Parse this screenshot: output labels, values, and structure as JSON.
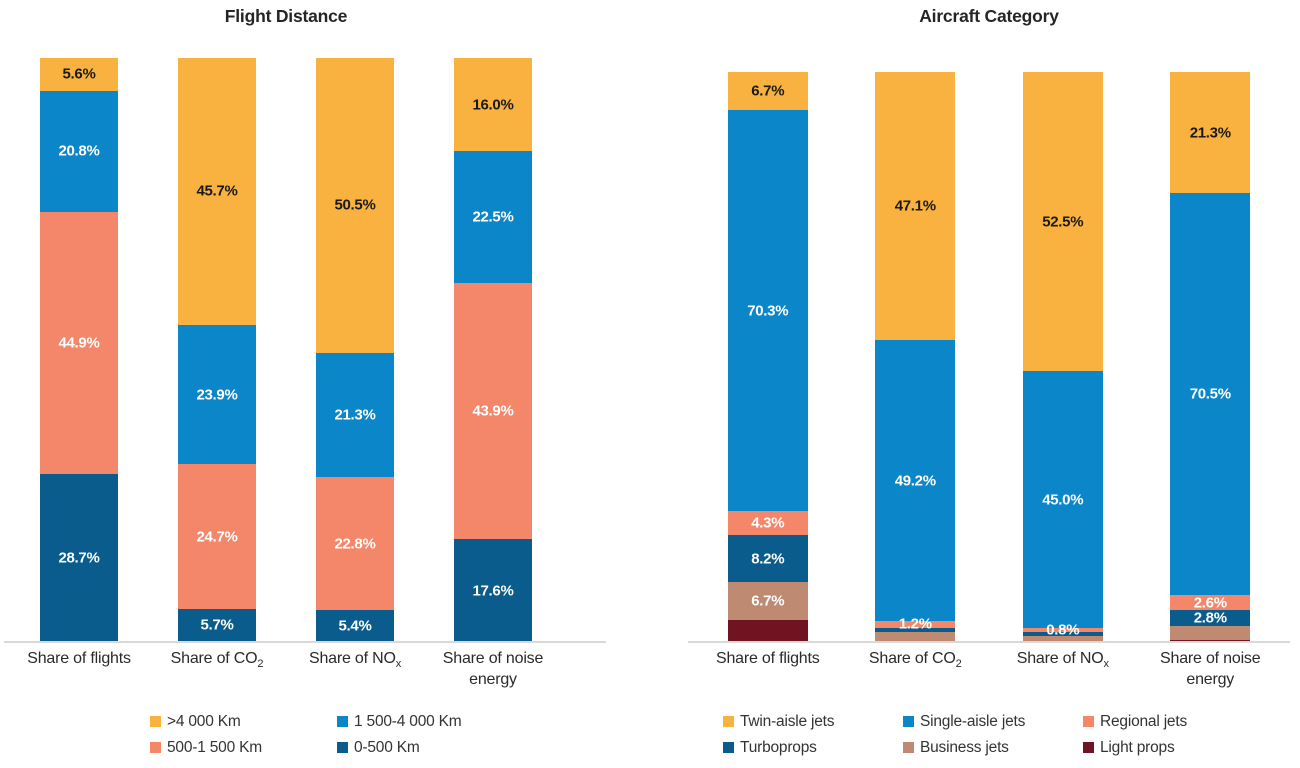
{
  "page": {
    "background_color": "#ffffff",
    "text_color": "#262626",
    "axis_line_color": "#d9d9d9"
  },
  "chart_data": [
    {
      "type": "bar",
      "stacked": true,
      "title": "Flight Distance",
      "unit": "%",
      "ylim": [
        0,
        100
      ],
      "grid": false,
      "legend_position": "bottom",
      "legend_columns": 2,
      "categories": [
        {
          "text": "Share of flights",
          "sub": ""
        },
        {
          "text": "Share of CO",
          "sub": "2"
        },
        {
          "text": "Share of NO",
          "sub": "x"
        },
        {
          "text": "Share of noise energy",
          "sub": ""
        }
      ],
      "series": [
        {
          "name": ">4 000 Km",
          "color": "#F9B23F",
          "label_style": "dark",
          "values": [
            5.6,
            45.7,
            50.5,
            16.0
          ],
          "show_labels": [
            true,
            true,
            true,
            true
          ]
        },
        {
          "name": "1 500-4 000 Km",
          "color": "#0B86C8",
          "label_style": "light",
          "values": [
            20.8,
            23.9,
            21.3,
            22.5
          ],
          "show_labels": [
            true,
            true,
            true,
            true
          ]
        },
        {
          "name": "500-1 500 Km",
          "color": "#F4876A",
          "label_style": "light",
          "values": [
            44.9,
            24.7,
            22.8,
            43.9
          ],
          "show_labels": [
            true,
            true,
            true,
            true
          ]
        },
        {
          "name": "0-500 Km",
          "color": "#0A5C8D",
          "label_style": "light",
          "values": [
            28.7,
            5.7,
            5.4,
            17.6
          ],
          "show_labels": [
            true,
            true,
            true,
            true
          ]
        }
      ]
    },
    {
      "type": "bar",
      "stacked": true,
      "title": "Aircraft Category",
      "unit": "%",
      "ylim": [
        0,
        100
      ],
      "grid": false,
      "legend_position": "bottom",
      "legend_columns": 3,
      "categories": [
        {
          "text": "Share of flights",
          "sub": ""
        },
        {
          "text": "Share of CO",
          "sub": "2"
        },
        {
          "text": "Share of NO",
          "sub": "x"
        },
        {
          "text": "Share of noise energy",
          "sub": ""
        }
      ],
      "series": [
        {
          "name": "Twin-aisle jets",
          "color": "#F9B23F",
          "label_style": "dark",
          "values": [
            6.7,
            47.1,
            52.5,
            21.3
          ],
          "show_labels": [
            true,
            true,
            true,
            true
          ]
        },
        {
          "name": "Single-aisle jets",
          "color": "#0B86C8",
          "label_style": "light",
          "values": [
            70.3,
            49.2,
            45.0,
            70.5
          ],
          "show_labels": [
            true,
            true,
            true,
            true
          ]
        },
        {
          "name": "Regional jets",
          "color": "#F4876A",
          "label_style": "light",
          "values": [
            4.3,
            1.2,
            0.8,
            2.6
          ],
          "show_labels": [
            true,
            true,
            true,
            true
          ]
        },
        {
          "name": "Turboprops",
          "color": "#0A5C8D",
          "label_style": "light",
          "values": [
            8.2,
            0.8,
            0.7,
            2.8
          ],
          "show_labels": [
            true,
            false,
            false,
            true
          ]
        },
        {
          "name": "Business jets",
          "color": "#BE8A72",
          "label_style": "light",
          "values": [
            6.7,
            1.6,
            0.9,
            2.4
          ],
          "show_labels": [
            true,
            false,
            false,
            false
          ]
        },
        {
          "name": "Light props",
          "color": "#701421",
          "label_style": "light",
          "values": [
            3.8,
            0.1,
            0.1,
            0.4
          ],
          "show_labels": [
            false,
            false,
            false,
            false
          ]
        }
      ]
    }
  ]
}
